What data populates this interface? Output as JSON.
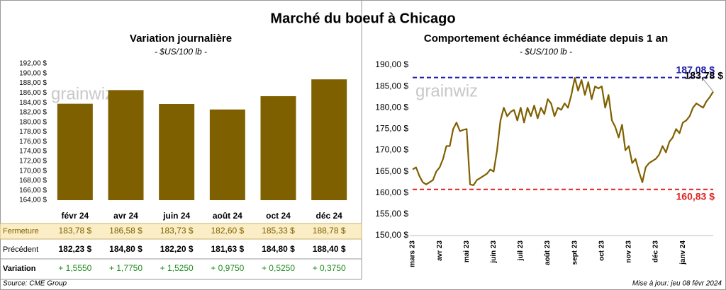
{
  "title": "Marché du boeuf à Chicago",
  "logo": "grainwiz",
  "chart_data": [
    {
      "type": "bar",
      "title": "Variation journalière",
      "subtitle": "- $US/100 lb -",
      "categories": [
        "févr 24",
        "avr 24",
        "juin 24",
        "août 24",
        "oct 24",
        "déc 24"
      ],
      "values": [
        183.78,
        186.58,
        183.73,
        182.6,
        185.33,
        188.78
      ],
      "value_labels": [
        "183,78 $",
        "186,58 $",
        "183,73 $",
        "182,60 $",
        "185,33 $",
        "188,78 $"
      ],
      "color": "#7f6000",
      "grid": false,
      "ylim": [
        164,
        192
      ],
      "yticks": [
        {
          "value": 164,
          "label": "164,00 $"
        },
        {
          "value": 166,
          "label": "166,00 $"
        },
        {
          "value": 168,
          "label": "168,00 $"
        },
        {
          "value": 170,
          "label": "170,00 $"
        },
        {
          "value": 172,
          "label": "172,00 $"
        },
        {
          "value": 174,
          "label": "174,00 $"
        },
        {
          "value": 176,
          "label": "176,00 $"
        },
        {
          "value": 178,
          "label": "178,00 $"
        },
        {
          "value": 180,
          "label": "180,00 $"
        },
        {
          "value": 182,
          "label": "182,00 $"
        },
        {
          "value": 184,
          "label": "184,00 $"
        },
        {
          "value": 186,
          "label": "186,00 $"
        },
        {
          "value": 188,
          "label": "188,00 $"
        },
        {
          "value": 190,
          "label": "190,00 $"
        },
        {
          "value": 192,
          "label": "192,00 $"
        }
      ]
    },
    {
      "type": "line",
      "title": "Comportement  échéance immédiate depuis 1 an",
      "subtitle": "- $US/100 lb -",
      "categories": [
        "mars 23",
        null,
        null,
        null,
        null,
        null,
        null,
        null,
        "avr 23",
        null,
        null,
        null,
        null,
        null,
        null,
        null,
        "mai 23",
        null,
        null,
        null,
        null,
        null,
        null,
        null,
        "juin 23",
        null,
        null,
        null,
        null,
        null,
        null,
        null,
        "juil 23",
        null,
        null,
        null,
        null,
        null,
        null,
        null,
        "août 23",
        null,
        null,
        null,
        null,
        null,
        null,
        null,
        "sept 23",
        null,
        null,
        null,
        null,
        null,
        null,
        null,
        "oct 23",
        null,
        null,
        null,
        null,
        null,
        null,
        null,
        "nov 23",
        null,
        null,
        null,
        null,
        null,
        null,
        null,
        "déc 23",
        null,
        null,
        null,
        null,
        null,
        null,
        null,
        "janv 24",
        null,
        null,
        null,
        null,
        null,
        null,
        null,
        null,
        null
      ],
      "values": [
        165.5,
        166,
        164,
        162.5,
        162,
        162.5,
        163,
        165,
        166,
        168,
        171,
        171,
        175,
        176.5,
        174.5,
        174.8,
        175,
        162,
        161.8,
        163,
        163.5,
        164,
        164.5,
        165.5,
        165,
        170,
        177,
        180,
        178,
        179,
        179.5,
        177,
        180,
        176.5,
        180,
        178,
        180.5,
        177.5,
        180,
        178.5,
        182,
        181,
        178,
        180,
        179.5,
        181,
        180,
        183,
        187,
        184,
        186.5,
        183,
        186,
        182,
        185,
        184.5,
        185,
        180,
        183,
        177,
        175.5,
        173,
        176,
        170,
        171,
        167,
        168,
        165,
        162.5,
        166,
        167,
        167.5,
        168,
        169,
        171,
        169.5,
        172,
        173,
        175,
        174,
        176.5,
        177,
        178,
        180,
        181,
        180.5,
        180,
        181.5,
        182.5,
        183.78
      ],
      "last_value_label": "183,78 $",
      "color": "#7f6000",
      "grid": false,
      "ylim": [
        150,
        190
      ],
      "yticks": [
        {
          "value": 150,
          "label": "150,00 $"
        },
        {
          "value": 155,
          "label": "155,00 $"
        },
        {
          "value": 160,
          "label": "160,00 $"
        },
        {
          "value": 165,
          "label": "165,00 $"
        },
        {
          "value": 170,
          "label": "170,00 $"
        },
        {
          "value": 175,
          "label": "175,00 $"
        },
        {
          "value": 180,
          "label": "180,00 $"
        },
        {
          "value": 185,
          "label": "185,00 $"
        },
        {
          "value": 190,
          "label": "190,00 $"
        }
      ],
      "reference_lines": [
        {
          "value": 187.08,
          "label": "187,08 $",
          "color": "#1f1fa8"
        },
        {
          "value": 160.83,
          "label": "160,83 $",
          "color": "#e02020"
        }
      ]
    }
  ],
  "table": {
    "closing_label": "Fermeture",
    "rows": [
      {
        "label": "Précédent",
        "cells": [
          "182,23 $",
          "184,80 $",
          "182,20 $",
          "181,63 $",
          "184,80 $",
          "188,40 $"
        ]
      },
      {
        "label": "Variation",
        "cells": [
          "+ 1,5550",
          "+ 1,7750",
          "+ 1,5250",
          "+ 0,9750",
          "+ 0,5250",
          "+ 0,3750"
        ]
      }
    ]
  },
  "footer": {
    "source": "Source: CME Group",
    "updated": "Mise à jour: jeu 08 févr 2024"
  }
}
